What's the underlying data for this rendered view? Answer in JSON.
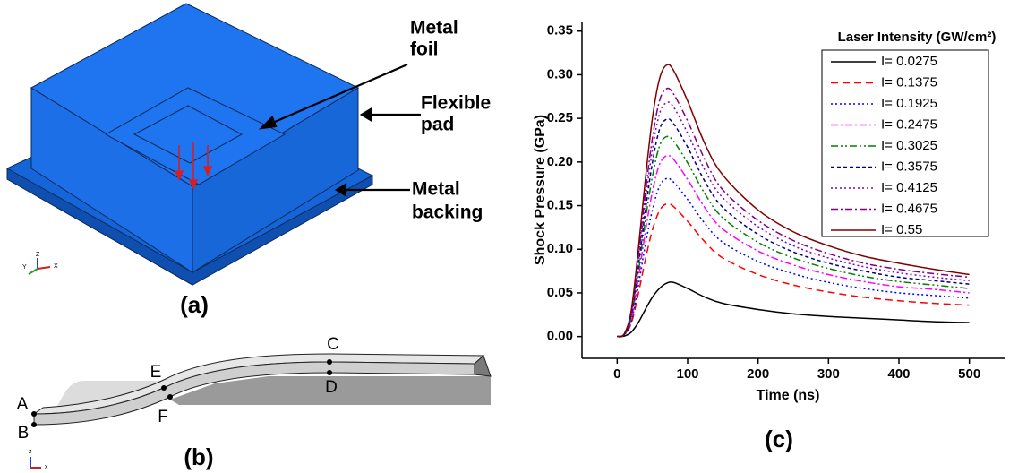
{
  "panel_a": {
    "label": "(a)",
    "annotations": [
      [
        "Metal",
        "foil"
      ],
      [
        "Flexible",
        "pad"
      ],
      [
        "Metal",
        "backing"
      ]
    ],
    "triad": [
      "Y",
      "Z",
      "X"
    ]
  },
  "panel_b": {
    "label": "(b)",
    "points": [
      "A",
      "B",
      "C",
      "D",
      "E",
      "F"
    ],
    "triad": [
      "z",
      "x"
    ]
  },
  "chart_data": {
    "type": "line",
    "panel_label": "(c)",
    "x_label": "Time (ns)",
    "y_label": "Shock Pressure (GPa)",
    "legend_title": "Laser Intensity (GW/cm²)",
    "legend": "upper right",
    "xlim": [
      -50,
      550
    ],
    "ylim": [
      -0.025,
      0.36
    ],
    "xticks": [
      0,
      100,
      200,
      300,
      400,
      500
    ],
    "yticks": [
      {
        "value": 0,
        "label": "0.00"
      },
      {
        "value": 0.05,
        "label": "0.05"
      },
      {
        "value": 0.1,
        "label": "0.10"
      },
      {
        "value": 0.15,
        "label": "0.15"
      },
      {
        "value": 0.2,
        "label": "0.20"
      },
      {
        "value": 0.25,
        "label": "0.25"
      },
      {
        "value": 0.3,
        "label": "0.30"
      },
      {
        "value": 0.35,
        "label": "0.35"
      }
    ],
    "x": [
      0,
      10,
      20,
      30,
      40,
      50,
      60,
      70,
      80,
      100,
      125,
      150,
      200,
      250,
      300,
      350,
      400,
      450,
      500
    ],
    "series": [
      {
        "name": "I= 0.0275",
        "color": "#000000",
        "dash": "solid",
        "values": [
          0,
          0.0005,
          0.005,
          0.016,
          0.031,
          0.045,
          0.055,
          0.061,
          0.062,
          0.055,
          0.045,
          0.038,
          0.031,
          0.026,
          0.023,
          0.021,
          0.019,
          0.017,
          0.016
        ]
      },
      {
        "name": "I= 0.1375",
        "color": "#ff0000",
        "dash": "dashed",
        "values": [
          0,
          0.002,
          0.015,
          0.049,
          0.088,
          0.122,
          0.144,
          0.152,
          0.149,
          0.132,
          0.108,
          0.09,
          0.071,
          0.059,
          0.051,
          0.045,
          0.041,
          0.038,
          0.036
        ]
      },
      {
        "name": "I= 0.1925",
        "color": "#0000ff",
        "dash": "dotted",
        "values": [
          0,
          0.002,
          0.017,
          0.058,
          0.105,
          0.145,
          0.172,
          0.181,
          0.177,
          0.157,
          0.129,
          0.108,
          0.086,
          0.072,
          0.062,
          0.055,
          0.05,
          0.047,
          0.044
        ]
      },
      {
        "name": "I= 0.2475",
        "color": "#ff00ff",
        "dash": "dashdot",
        "values": [
          0,
          0.002,
          0.02,
          0.066,
          0.12,
          0.166,
          0.197,
          0.207,
          0.203,
          0.18,
          0.147,
          0.123,
          0.098,
          0.082,
          0.071,
          0.063,
          0.057,
          0.054,
          0.05
        ]
      },
      {
        "name": "I= 0.3025",
        "color": "#008000",
        "dash": "dashdotdot",
        "values": [
          0,
          0.002,
          0.022,
          0.073,
          0.133,
          0.183,
          0.218,
          0.229,
          0.224,
          0.199,
          0.163,
          0.136,
          0.108,
          0.09,
          0.078,
          0.069,
          0.063,
          0.059,
          0.055
        ]
      },
      {
        "name": "I= 0.3575",
        "color": "#000080",
        "dash": "shortdash",
        "values": [
          0,
          0.002,
          0.024,
          0.08,
          0.144,
          0.199,
          0.237,
          0.249,
          0.244,
          0.217,
          0.177,
          0.148,
          0.117,
          0.097,
          0.084,
          0.075,
          0.068,
          0.064,
          0.06
        ]
      },
      {
        "name": "I= 0.4125",
        "color": "#7b00c8",
        "dash": "dotted",
        "values": [
          0,
          0.003,
          0.026,
          0.086,
          0.155,
          0.214,
          0.255,
          0.268,
          0.263,
          0.233,
          0.19,
          0.159,
          0.126,
          0.104,
          0.09,
          0.08,
          0.073,
          0.068,
          0.064
        ]
      },
      {
        "name": "I= 0.4675",
        "color": "#800080",
        "dash": "dashdot",
        "values": [
          0,
          0.003,
          0.027,
          0.091,
          0.165,
          0.227,
          0.27,
          0.284,
          0.278,
          0.247,
          0.202,
          0.168,
          0.133,
          0.11,
          0.095,
          0.084,
          0.077,
          0.072,
          0.068
        ]
      },
      {
        "name": "I= 0.55",
        "color": "#800000",
        "dash": "solid",
        "values": [
          0,
          0.003,
          0.03,
          0.1,
          0.18,
          0.25,
          0.295,
          0.311,
          0.305,
          0.27,
          0.22,
          0.185,
          0.145,
          0.12,
          0.104,
          0.092,
          0.084,
          0.077,
          0.071
        ]
      }
    ]
  }
}
